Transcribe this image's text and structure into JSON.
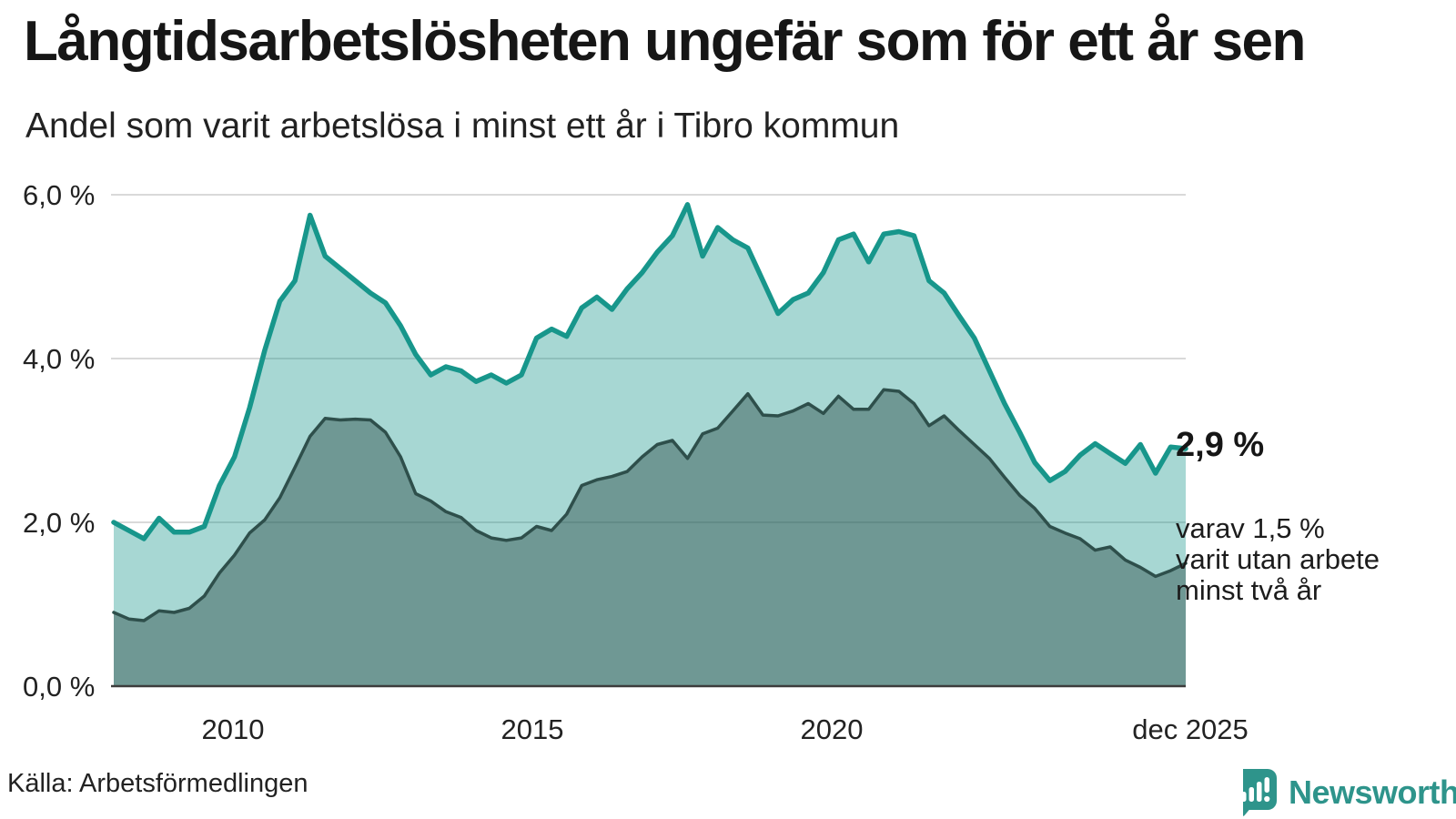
{
  "header": {
    "title": "Långtidsarbetslösheten ungefär som för ett år sen",
    "subtitle": "Andel som varit arbetslösa i minst ett år i Tibro kommun"
  },
  "chart_data": {
    "type": "area",
    "title": "Långtidsarbetslösheten ungefär som för ett år sen",
    "subtitle": "Andel som varit arbetslösa i minst ett år i Tibro kommun",
    "unit": "%",
    "x_range": [
      "2008",
      "dec 2025"
    ],
    "points_per_year": 4,
    "ylim": [
      0,
      6
    ],
    "grid": "horizontal",
    "legend_position": "none",
    "colors": {
      "line_one_year": "#17968b",
      "line_two_years": "#2e4f4b",
      "gridline": "#d9d9d9",
      "baseline": "#3c3c3c"
    },
    "y_ticks": [
      {
        "label": "6,0 %",
        "value": 6
      },
      {
        "label": "4,0 %",
        "value": 4
      },
      {
        "label": "2,0 %",
        "value": 2
      },
      {
        "label": "0,0 %",
        "value": 0
      }
    ],
    "x_ticks": [
      {
        "label": "2010"
      },
      {
        "label": "2015"
      },
      {
        "label": "2020"
      },
      {
        "label": "dec 2025"
      }
    ],
    "series": [
      {
        "name": "Andel som varit arbetslösa i minst ett år",
        "color": "#17968b",
        "fill_opacity": 0.38,
        "line_width": 5.5,
        "values": [
          2.0,
          1.9,
          1.8,
          2.05,
          1.88,
          1.88,
          1.95,
          2.45,
          2.8,
          3.4,
          4.1,
          4.7,
          4.95,
          5.75,
          5.25,
          5.1,
          4.95,
          4.8,
          4.68,
          4.4,
          4.05,
          3.8,
          3.9,
          3.85,
          3.72,
          3.8,
          3.7,
          3.8,
          4.25,
          4.36,
          4.27,
          4.62,
          4.75,
          4.6,
          4.85,
          5.05,
          5.3,
          5.5,
          5.88,
          5.25,
          5.6,
          5.45,
          5.35,
          4.95,
          4.55,
          4.72,
          4.8,
          5.05,
          5.45,
          5.52,
          5.18,
          5.52,
          5.55,
          5.5,
          4.95,
          4.8,
          4.52,
          4.25,
          3.85,
          3.45,
          3.1,
          2.73,
          2.51,
          2.62,
          2.82,
          2.96,
          2.84,
          2.72,
          2.95,
          2.6,
          2.92,
          2.9
        ]
      },
      {
        "name": "Varav utan arbete i minst två år",
        "color": "#2e4f4b",
        "fill_opacity": 0.46,
        "line_width": 3.5,
        "values": [
          0.9,
          0.82,
          0.8,
          0.92,
          0.9,
          0.95,
          1.1,
          1.38,
          1.6,
          1.87,
          2.03,
          2.3,
          2.67,
          3.05,
          3.27,
          3.25,
          3.26,
          3.25,
          3.1,
          2.8,
          2.35,
          2.26,
          2.13,
          2.06,
          1.9,
          1.81,
          1.78,
          1.81,
          1.95,
          1.9,
          2.1,
          2.45,
          2.52,
          2.56,
          2.62,
          2.8,
          2.95,
          3.0,
          2.78,
          3.08,
          3.15,
          3.36,
          3.57,
          3.31,
          3.3,
          3.36,
          3.45,
          3.33,
          3.54,
          3.38,
          3.38,
          3.62,
          3.6,
          3.45,
          3.18,
          3.3,
          3.12,
          2.95,
          2.78,
          2.55,
          2.33,
          2.17,
          1.95,
          1.87,
          1.8,
          1.66,
          1.7,
          1.54,
          1.45,
          1.34,
          1.41,
          1.5
        ]
      }
    ],
    "annotations": {
      "end_value_primary": "2,9 %",
      "end_value_secondary": "varav 1,5 %\nvarit utan arbete\nminst två år"
    }
  },
  "footer": {
    "source": "Källa: Arbetsförmedlingen"
  },
  "logo": {
    "text": "Newsworthy",
    "color": "#2e948b",
    "icon": "newsworthy-speech-bubble-bar-chart"
  }
}
